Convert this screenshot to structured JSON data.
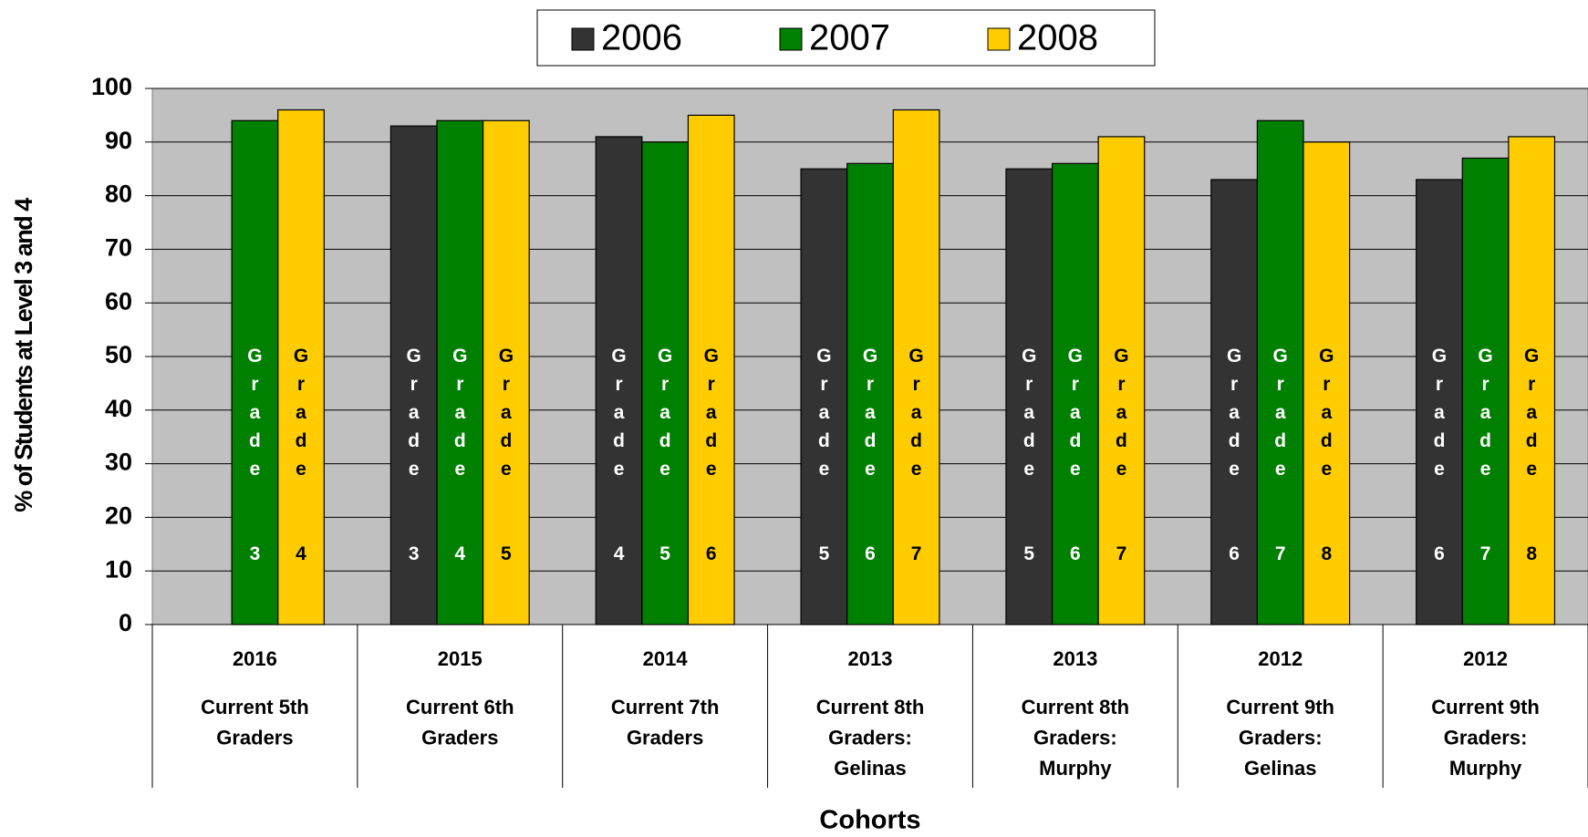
{
  "chart_data": {
    "type": "bar",
    "y_axis_label": "% of Students at Level 3 and 4",
    "x_axis_label": "Cohorts",
    "category_years": [
      "2016",
      "2015",
      "2014",
      "2013",
      "2013",
      "2012",
      "2012"
    ],
    "categories": [
      [
        "Current 5th",
        "Graders"
      ],
      [
        "Current 6th",
        "Graders"
      ],
      [
        "Current 7th",
        "Graders"
      ],
      [
        "Current 8th",
        "Graders:",
        "Gelinas"
      ],
      [
        "Current 8th",
        "Graders:",
        "Murphy"
      ],
      [
        "Current 9th",
        "Graders:",
        "Gelinas"
      ],
      [
        "Current 9th",
        "Graders:",
        "Murphy"
      ]
    ],
    "series": [
      {
        "name": "2006",
        "color": "#333333",
        "label_color": "#ffffff",
        "values": [
          null,
          93,
          91,
          85,
          85,
          83,
          83
        ],
        "bar_labels": [
          null,
          "Grade 3",
          "Grade 4",
          "Grade 5",
          "Grade 5",
          "Grade 6",
          "Grade 6"
        ]
      },
      {
        "name": "2007",
        "color": "#008000",
        "label_color": "#ffffff",
        "values": [
          94,
          94,
          90,
          86,
          86,
          94,
          87
        ],
        "bar_labels": [
          "Grade 3",
          "Grade 4",
          "Grade 5",
          "Grade 6",
          "Grade 6",
          "Grade 7",
          "Grade 7"
        ]
      },
      {
        "name": "2008",
        "color": "#ffcc00",
        "label_color": "#000000",
        "values": [
          96,
          94,
          95,
          96,
          91,
          90,
          91
        ],
        "bar_labels": [
          "Grade 4",
          "Grade 5",
          "Grade 6",
          "Grade 7",
          "Grade 7",
          "Grade 8",
          "Grade 8"
        ]
      }
    ],
    "ylim": [
      0,
      100
    ],
    "yticks": [
      0,
      10,
      20,
      30,
      40,
      50,
      60,
      70,
      80,
      90,
      100
    ],
    "grid": true,
    "legend": "top",
    "plot_background": "#c0c0c0"
  }
}
